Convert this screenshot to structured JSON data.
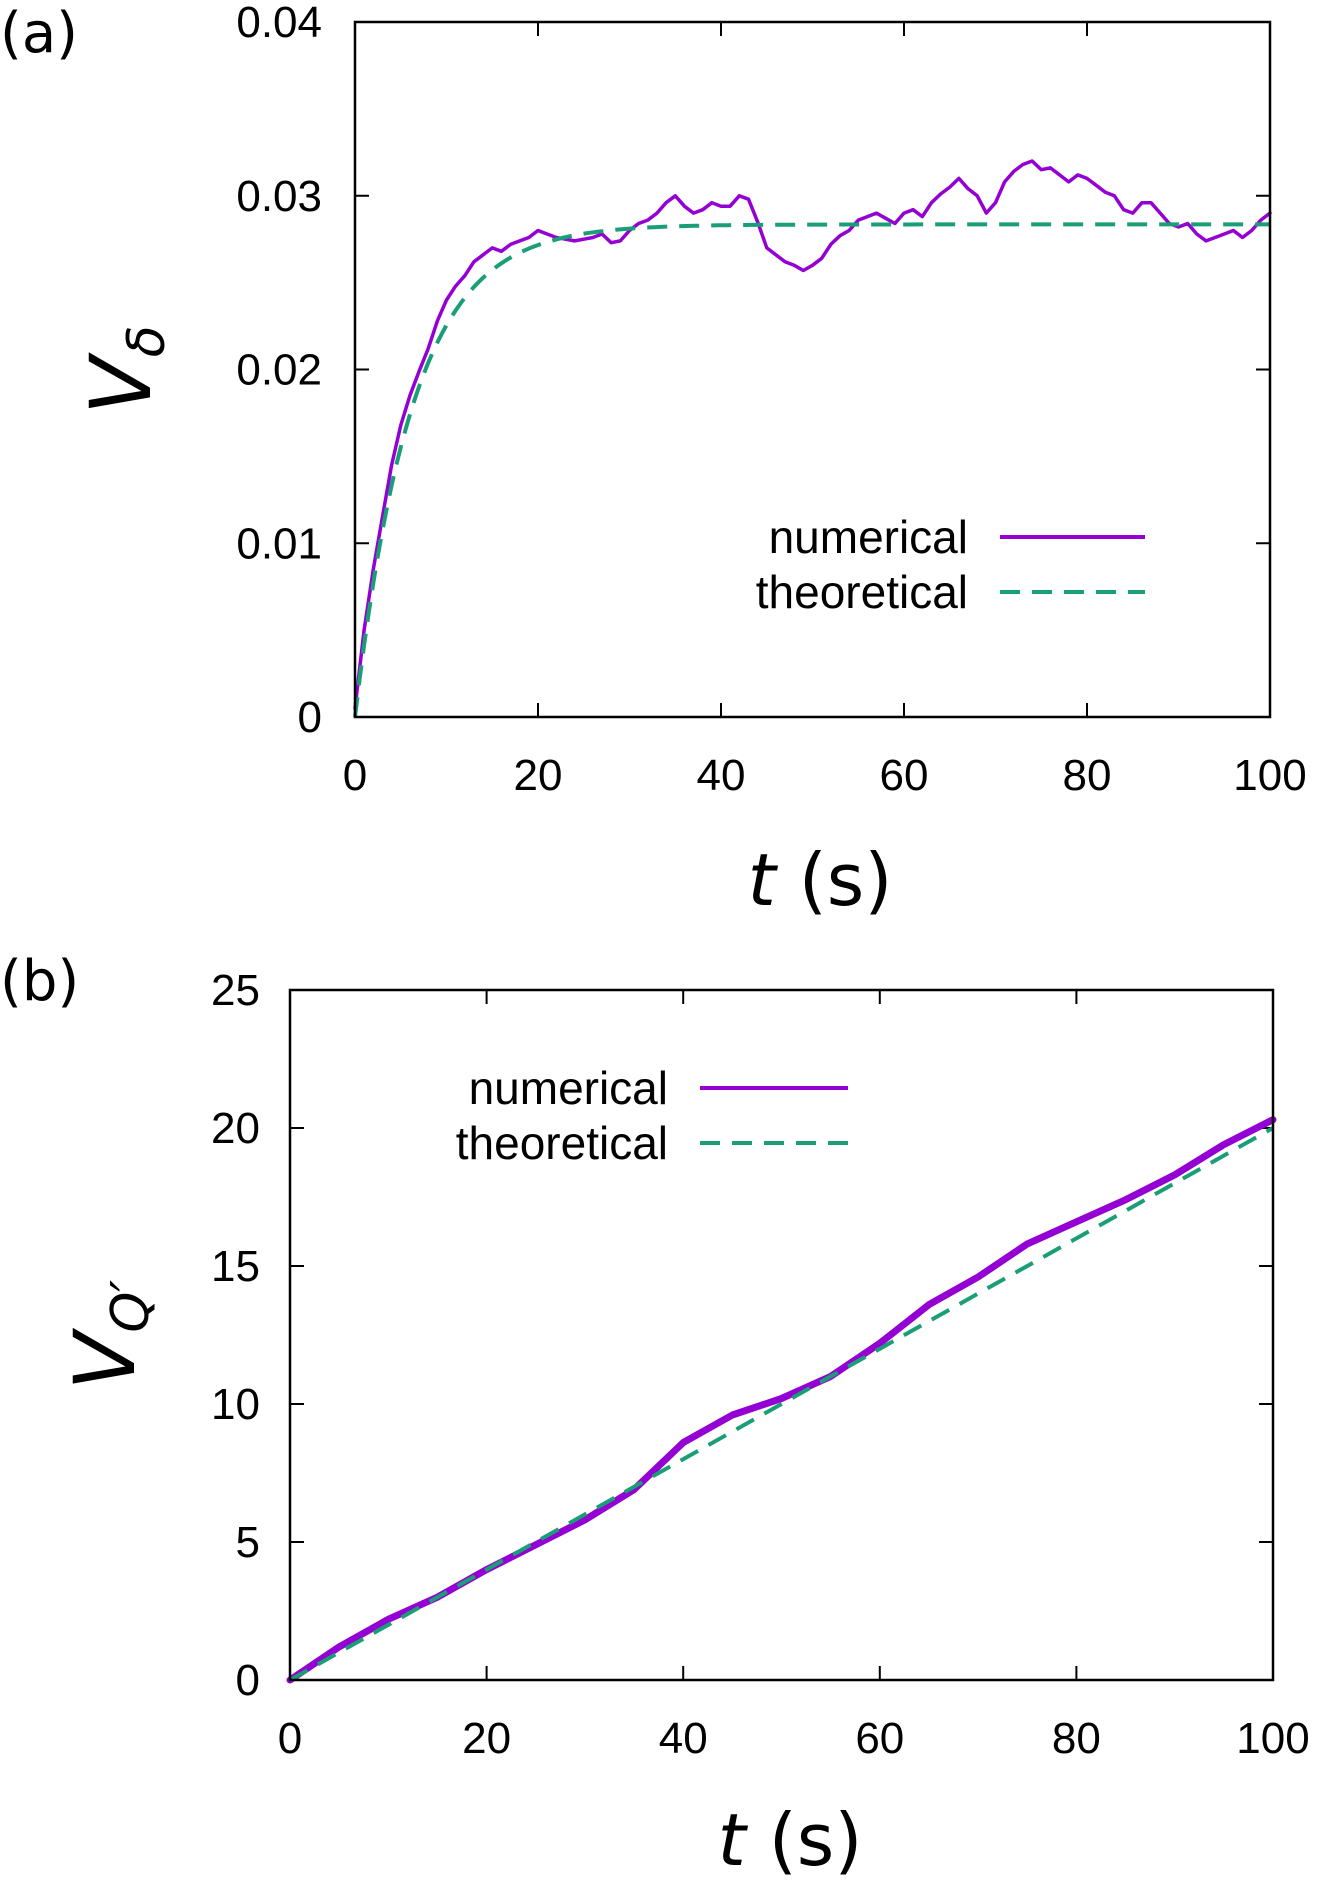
{
  "chart_data": [
    {
      "type": "line",
      "panel_label": "(a)",
      "xlabel": {
        "var": "t",
        "unit": " (s)"
      },
      "ylabel": {
        "base": "V",
        "sub": "δ"
      },
      "xlim": [
        0,
        100
      ],
      "ylim": [
        0,
        0.04
      ],
      "xticks": [
        "0",
        "20",
        "40",
        "60",
        "80",
        "100"
      ],
      "yticks": [
        "0",
        "0.01",
        "0.02",
        "0.03",
        "0.04"
      ],
      "legend_position": "center-right",
      "series": [
        {
          "name": "numerical",
          "style": "solid",
          "color": "#9400D3",
          "x": [
            0,
            1,
            2,
            3,
            4,
            5,
            6,
            7,
            8,
            9,
            10,
            11,
            12,
            13,
            14,
            15,
            16,
            17,
            18,
            19,
            20,
            21,
            22,
            23,
            24,
            25,
            26,
            27,
            28,
            29,
            30,
            31,
            32,
            33,
            34,
            35,
            36,
            37,
            38,
            39,
            40,
            41,
            42,
            43,
            44,
            45,
            46,
            47,
            48,
            49,
            50,
            51,
            52,
            53,
            54,
            55,
            56,
            57,
            58,
            59,
            60,
            61,
            62,
            63,
            64,
            65,
            66,
            67,
            68,
            69,
            70,
            71,
            72,
            73,
            74,
            75,
            76,
            77,
            78,
            79,
            80,
            81,
            82,
            83,
            84,
            85,
            86,
            87,
            88,
            89,
            90,
            91,
            92,
            93,
            94,
            95,
            96,
            97,
            98,
            99,
            100
          ],
          "y": [
            0.0005,
            0.005,
            0.0085,
            0.0115,
            0.0145,
            0.0168,
            0.0185,
            0.0199,
            0.0212,
            0.0228,
            0.024,
            0.0248,
            0.0254,
            0.0262,
            0.0266,
            0.027,
            0.0268,
            0.0272,
            0.0274,
            0.0276,
            0.028,
            0.0278,
            0.0276,
            0.0275,
            0.0274,
            0.0275,
            0.0276,
            0.0278,
            0.0273,
            0.0274,
            0.028,
            0.0284,
            0.0286,
            0.029,
            0.0296,
            0.03,
            0.0294,
            0.029,
            0.0292,
            0.0296,
            0.0294,
            0.0294,
            0.03,
            0.0298,
            0.0285,
            0.027,
            0.0266,
            0.0262,
            0.026,
            0.0257,
            0.026,
            0.0264,
            0.0272,
            0.0277,
            0.028,
            0.0286,
            0.0288,
            0.029,
            0.0287,
            0.0284,
            0.029,
            0.0292,
            0.0288,
            0.0296,
            0.0301,
            0.0305,
            0.031,
            0.0304,
            0.03,
            0.029,
            0.0296,
            0.0308,
            0.0314,
            0.0318,
            0.032,
            0.0315,
            0.0316,
            0.0312,
            0.0308,
            0.0312,
            0.031,
            0.0306,
            0.0302,
            0.03,
            0.0292,
            0.029,
            0.0296,
            0.0296,
            0.029,
            0.0284,
            0.0282,
            0.0284,
            0.0278,
            0.0274,
            0.0276,
            0.0278,
            0.028,
            0.0276,
            0.028,
            0.0286,
            0.029
          ]
        },
        {
          "name": "theoretical",
          "style": "dashed",
          "color": "#1A9E77",
          "model": {
            "kind": "saturating",
            "asymptote": 0.02835,
            "tau": 6.3,
            "samples": 200
          }
        }
      ]
    },
    {
      "type": "line",
      "panel_label": "(b)",
      "xlabel": {
        "var": "t",
        "unit": " (s)"
      },
      "ylabel": {
        "base": "V",
        "sub": "Q′"
      },
      "xlim": [
        0,
        100
      ],
      "ylim": [
        0,
        25
      ],
      "xticks": [
        "0",
        "20",
        "40",
        "60",
        "80",
        "100"
      ],
      "yticks": [
        "0",
        "5",
        "10",
        "15",
        "20",
        "25"
      ],
      "legend_position": "top-left",
      "series": [
        {
          "name": "numerical",
          "style": "solid",
          "color": "#9400D3",
          "x": [
            0,
            5,
            10,
            15,
            20,
            25,
            30,
            35,
            40,
            45,
            50,
            55,
            60,
            65,
            70,
            75,
            80,
            85,
            90,
            95,
            100
          ],
          "y": [
            0,
            1.2,
            2.2,
            3.0,
            4.0,
            4.9,
            5.8,
            6.9,
            8.6,
            9.6,
            10.2,
            11.0,
            12.2,
            13.6,
            14.6,
            15.8,
            16.6,
            17.4,
            18.3,
            19.4,
            20.3
          ]
        },
        {
          "name": "theoretical",
          "style": "dashed",
          "color": "#1A9E77",
          "model": {
            "kind": "linear",
            "slope": 0.2,
            "samples": 2
          }
        }
      ]
    }
  ]
}
